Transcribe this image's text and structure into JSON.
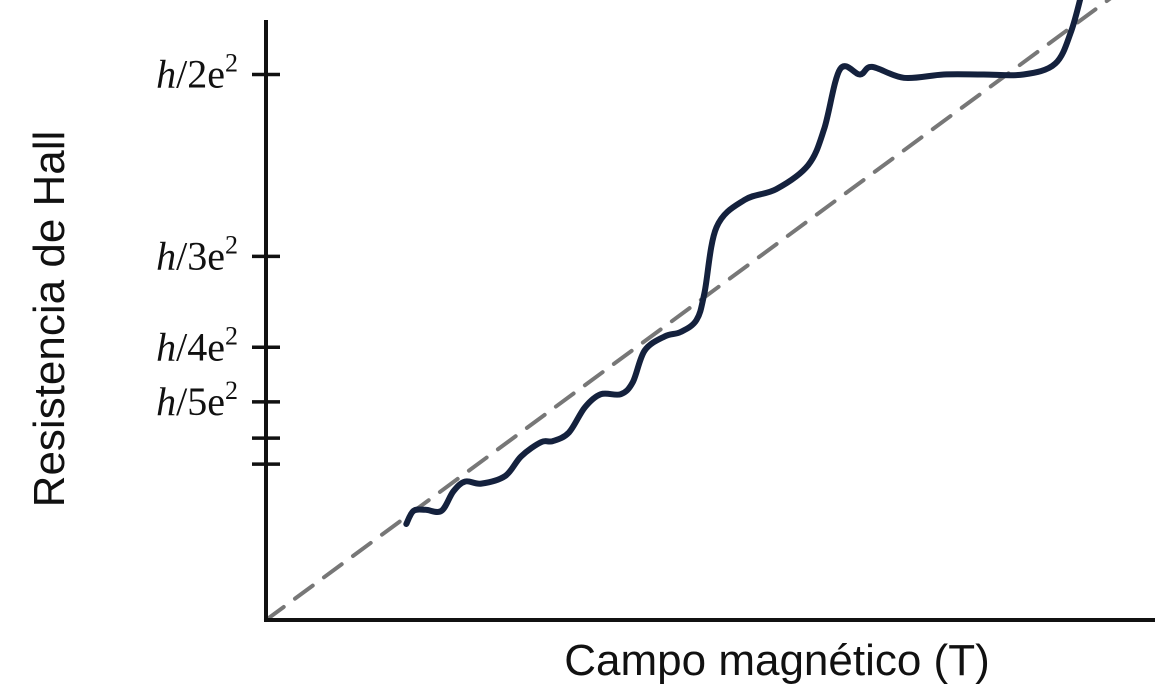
{
  "chart_data": {
    "type": "line",
    "xlabel": "Campo magnético (T)",
    "ylabel": "Resistencia de Hall",
    "xticks_shown": false,
    "yticks": [
      {
        "label_h": "h",
        "label_rest": "/2e",
        "label_sup": "2",
        "value": 0.5
      },
      {
        "label_h": "h",
        "label_rest": "/3e",
        "label_sup": "2",
        "value": 0.3333
      },
      {
        "label_h": "h",
        "label_rest": "/4e",
        "label_sup": "2",
        "value": 0.25
      },
      {
        "label_h": "h",
        "label_rest": "/5e",
        "label_sup": "2",
        "value": 0.2
      },
      {
        "value": 0.1667
      },
      {
        "value": 0.1429
      }
    ],
    "xlim": [
      0,
      1.115
    ],
    "ylim": [
      0,
      0.55
    ],
    "series": [
      {
        "style": "dashed",
        "color": "#777777",
        "x": [
          0,
          1.115
        ],
        "y": [
          0,
          0.6
        ]
      },
      {
        "style": "solid",
        "color": "#14213d",
        "x": [
          0.176,
          0.185,
          0.2,
          0.22,
          0.235,
          0.25,
          0.27,
          0.3,
          0.32,
          0.345,
          0.36,
          0.38,
          0.4,
          0.42,
          0.445,
          0.46,
          0.475,
          0.5,
          0.52,
          0.54,
          0.55,
          0.565,
          0.6,
          0.64,
          0.68,
          0.7,
          0.72,
          0.745,
          0.76,
          0.8,
          0.85,
          0.9,
          0.95,
          0.99,
          1.01,
          1.025
        ],
        "y": [
          0.088,
          0.1,
          0.101,
          0.1,
          0.118,
          0.127,
          0.125,
          0.132,
          0.15,
          0.163,
          0.164,
          0.172,
          0.195,
          0.207,
          0.207,
          0.218,
          0.247,
          0.26,
          0.264,
          0.275,
          0.3,
          0.36,
          0.385,
          0.395,
          0.417,
          0.45,
          0.505,
          0.5,
          0.507,
          0.497,
          0.5,
          0.5,
          0.5,
          0.51,
          0.54,
          0.58
        ]
      }
    ]
  }
}
